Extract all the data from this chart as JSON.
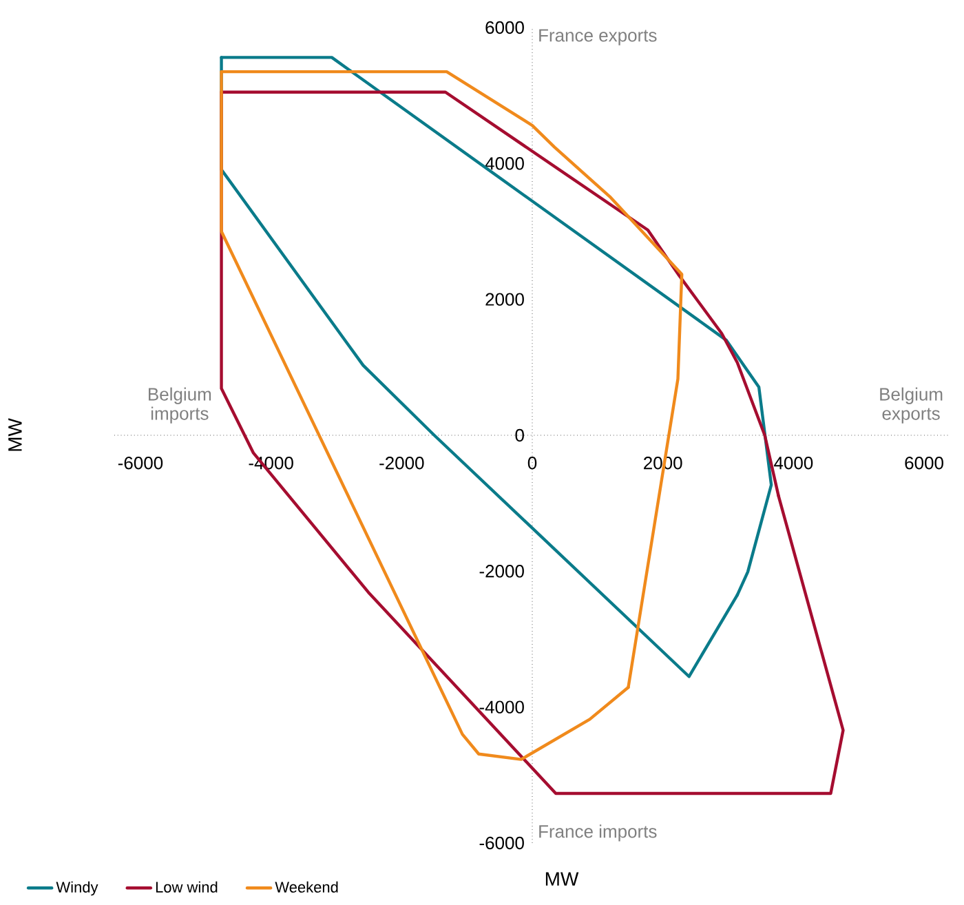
{
  "chart_data": {
    "type": "line",
    "xlabel": "MW",
    "ylabel": "MW",
    "annotations": [
      "France exports",
      "Belgium imports",
      "Belgium exports",
      "France imports"
    ],
    "xlim": [
      -6400,
      6400
    ],
    "ylim": [
      -6000,
      6000
    ],
    "xticks": [
      -6000,
      -4000,
      -2000,
      0,
      2000,
      4000,
      6000
    ],
    "yticks": [
      -6000,
      -4000,
      -2000,
      0,
      2000,
      4000,
      6000
    ],
    "legend": "bottom left",
    "series": [
      {
        "name": "Windy",
        "color": "#0a7b8a",
        "x": [
          -4760,
          -3070,
          2970,
          3470,
          3660,
          3300,
          3140,
          2400,
          -1500,
          -2590,
          -4760,
          -4760
        ],
        "values": [
          5560,
          5560,
          1400,
          710,
          -730,
          -2010,
          -2350,
          -3550,
          0,
          1030,
          3910,
          5560
        ]
      },
      {
        "name": "Low wind",
        "color": "#a50d30",
        "x": [
          -4760,
          -1330,
          1770,
          2250,
          2900,
          3140,
          3560,
          3770,
          4760,
          4570,
          360,
          -2510,
          -4270,
          -4760,
          -4760
        ],
        "values": [
          5050,
          5050,
          3020,
          2350,
          1500,
          1070,
          0,
          -890,
          -4340,
          -5270,
          -5270,
          -2310,
          -260,
          690,
          5050
        ]
      },
      {
        "name": "Weekend",
        "color": "#f08a1c",
        "x": [
          -4760,
          -1310,
          0,
          340,
          1200,
          2290,
          2230,
          1470,
          880,
          -170,
          -820,
          -1070,
          -4760,
          -4760
        ],
        "values": [
          5350,
          5350,
          4560,
          4240,
          3500,
          2370,
          830,
          -3710,
          -4180,
          -4770,
          -4690,
          -4400,
          3000,
          5350
        ]
      }
    ]
  }
}
